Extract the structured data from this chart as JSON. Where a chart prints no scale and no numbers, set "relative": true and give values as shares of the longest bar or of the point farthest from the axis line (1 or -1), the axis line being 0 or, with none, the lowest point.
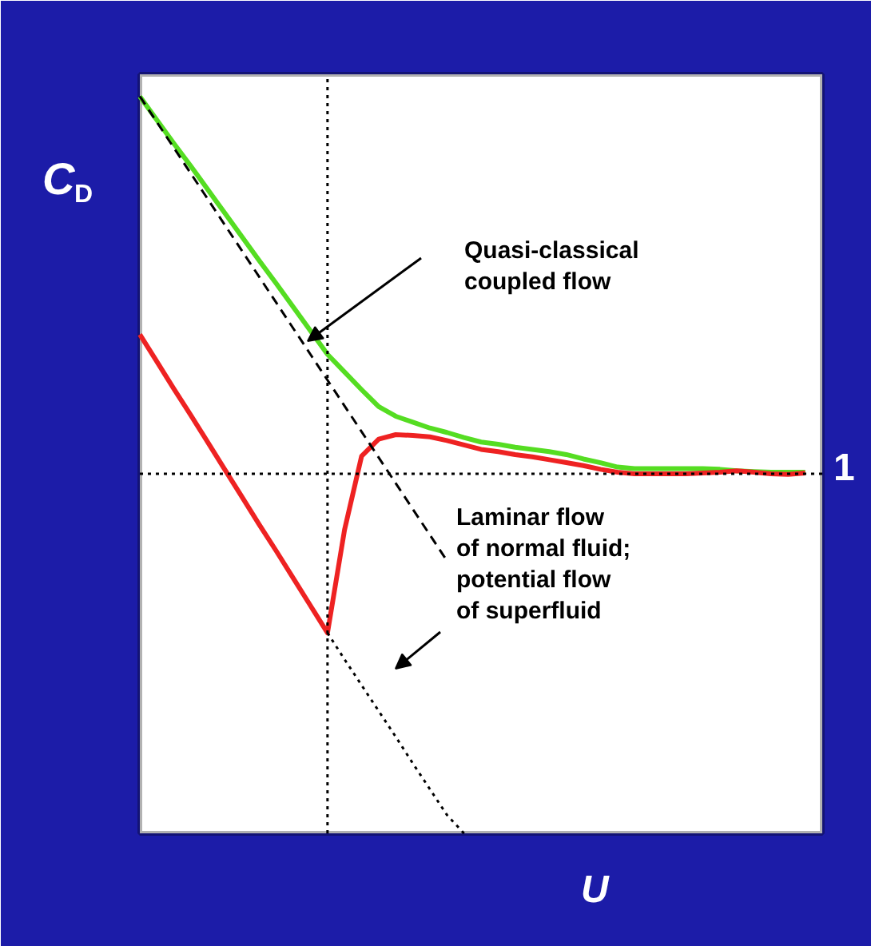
{
  "chart_data": {
    "type": "line",
    "relative": true,
    "xlabel": "U",
    "ylabel": "C$_{D}$",
    "tick_labels": false,
    "grid": false,
    "categories": [
      null,
      null,
      null,
      null,
      null,
      null,
      null,
      null,
      null,
      null,
      null,
      null,
      null,
      null,
      null,
      null,
      null,
      null,
      null,
      null,
      null,
      null,
      null,
      null,
      null,
      null,
      null,
      null,
      null,
      null,
      null,
      null,
      null,
      null,
      null,
      null,
      null,
      null,
      null,
      null,
      null
    ],
    "series": [
      {
        "color": "#55dd22",
        "values": [
          1.0,
          0.968,
          0.936,
          0.905,
          0.873,
          0.841,
          0.809,
          0.777,
          0.746,
          0.714,
          0.682,
          0.65,
          0.626,
          0.602,
          0.579,
          0.566,
          0.558,
          0.55,
          0.544,
          0.537,
          0.531,
          0.528,
          0.524,
          0.521,
          0.518,
          0.514,
          0.508,
          0.503,
          0.497,
          0.495,
          0.495,
          0.495,
          0.495,
          0.495,
          0.494,
          0.492,
          0.491,
          0.49,
          0.49,
          0.49,
          null
        ]
      },
      {
        "color": "#ee2222",
        "values": [
          0.677,
          0.64,
          0.603,
          0.567,
          0.53,
          0.493,
          0.456,
          0.419,
          0.383,
          0.346,
          0.309,
          0.272,
          0.412,
          0.512,
          0.535,
          0.541,
          0.54,
          0.538,
          0.533,
          0.527,
          0.521,
          0.518,
          0.514,
          0.511,
          0.507,
          0.503,
          0.499,
          0.494,
          0.49,
          0.488,
          0.488,
          0.488,
          0.488,
          0.489,
          0.49,
          0.492,
          0.49,
          0.488,
          0.487,
          0.489,
          null
        ]
      },
      {
        "color": "#000000",
        "line_style": "dashed",
        "values": [
          1.0,
          0.965,
          0.93,
          0.895,
          0.86,
          0.825,
          0.79,
          0.755,
          0.72,
          0.685,
          0.65,
          0.615,
          0.58,
          0.545,
          0.51,
          0.475,
          0.44,
          0.405,
          0.37,
          null,
          null,
          null,
          null,
          null,
          null,
          null,
          null,
          null,
          null,
          null,
          null,
          null,
          null,
          null,
          null,
          null,
          null,
          null,
          null,
          null,
          null
        ]
      },
      {
        "color": "#000000",
        "line_style": "dotted",
        "values": [
          null,
          null,
          null,
          null,
          null,
          null,
          null,
          null,
          null,
          null,
          null,
          0.272,
          0.236,
          0.201,
          0.166,
          0.131,
          0.095,
          0.06,
          0.025,
          0.0,
          null,
          null,
          null,
          null,
          null,
          null,
          null,
          null,
          null,
          null,
          null,
          null,
          null,
          null,
          null,
          null,
          null,
          null,
          null,
          null,
          null
        ]
      }
    ],
    "ref_lines": [
      {
        "axis": "y",
        "value": 0.488,
        "line_style": "dotted",
        "color": "#000000"
      }
    ],
    "annotations": [
      "Quasi-classical\ncoupled flow",
      "Laminar flow\nof normal fluid;\npotential flow\nof superfluid",
      "1"
    ]
  }
}
